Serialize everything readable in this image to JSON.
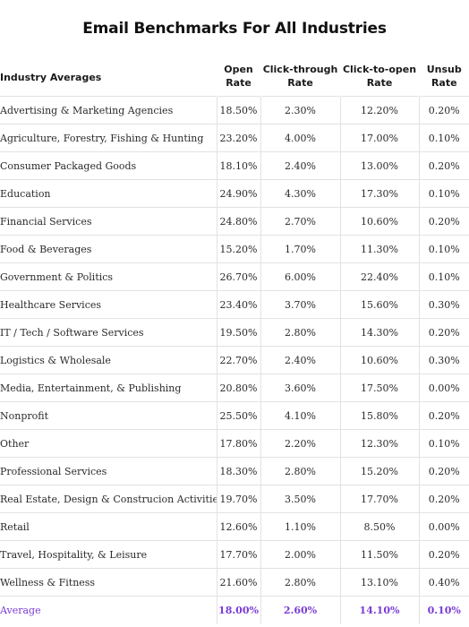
{
  "chart_data": {
    "type": "table",
    "title": "Email Benchmarks For All Industries",
    "columns": [
      "Industry Averages",
      "Open Rate",
      "Click-through Rate",
      "Click-to-open Rate",
      "Unsub Rate"
    ],
    "rows": [
      {
        "industry": "Advertising & Marketing Agencies",
        "open": "18.50%",
        "ctr": "2.30%",
        "ctor": "12.20%",
        "unsub": "0.20%"
      },
      {
        "industry": "Agriculture, Forestry, Fishing & Hunting",
        "open": "23.20%",
        "ctr": "4.00%",
        "ctor": "17.00%",
        "unsub": "0.10%"
      },
      {
        "industry": "Consumer Packaged Goods",
        "open": "18.10%",
        "ctr": "2.40%",
        "ctor": "13.00%",
        "unsub": "0.20%"
      },
      {
        "industry": "Education",
        "open": "24.90%",
        "ctr": "4.30%",
        "ctor": "17.30%",
        "unsub": "0.10%"
      },
      {
        "industry": "Financial Services",
        "open": "24.80%",
        "ctr": "2.70%",
        "ctor": "10.60%",
        "unsub": "0.20%"
      },
      {
        "industry": "Food & Beverages",
        "open": "15.20%",
        "ctr": "1.70%",
        "ctor": "11.30%",
        "unsub": "0.10%"
      },
      {
        "industry": "Government & Politics",
        "open": "26.70%",
        "ctr": "6.00%",
        "ctor": "22.40%",
        "unsub": "0.10%"
      },
      {
        "industry": "Healthcare Services",
        "open": "23.40%",
        "ctr": "3.70%",
        "ctor": "15.60%",
        "unsub": "0.30%"
      },
      {
        "industry": "IT / Tech / Software Services",
        "open": "19.50%",
        "ctr": "2.80%",
        "ctor": "14.30%",
        "unsub": "0.20%"
      },
      {
        "industry": "Logistics & Wholesale",
        "open": "22.70%",
        "ctr": "2.40%",
        "ctor": "10.60%",
        "unsub": "0.30%"
      },
      {
        "industry": "Media, Entertainment, & Publishing",
        "open": "20.80%",
        "ctr": "3.60%",
        "ctor": "17.50%",
        "unsub": "0.00%"
      },
      {
        "industry": "Nonprofit",
        "open": "25.50%",
        "ctr": "4.10%",
        "ctor": "15.80%",
        "unsub": "0.20%"
      },
      {
        "industry": "Other",
        "open": "17.80%",
        "ctr": "2.20%",
        "ctor": "12.30%",
        "unsub": "0.10%"
      },
      {
        "industry": "Professional Services",
        "open": "18.30%",
        "ctr": "2.80%",
        "ctor": "15.20%",
        "unsub": "0.20%"
      },
      {
        "industry": "Real Estate, Design & Construcion Activities",
        "open": "19.70%",
        "ctr": "3.50%",
        "ctor": "17.70%",
        "unsub": "0.20%"
      },
      {
        "industry": "Retail",
        "open": "12.60%",
        "ctr": "1.10%",
        "ctor": "8.50%",
        "unsub": "0.00%"
      },
      {
        "industry": "Travel, Hospitality, & Leisure",
        "open": "17.70%",
        "ctr": "2.00%",
        "ctor": "11.50%",
        "unsub": "0.20%"
      },
      {
        "industry": "Wellness & Fitness",
        "open": "21.60%",
        "ctr": "2.80%",
        "ctor": "13.10%",
        "unsub": "0.40%"
      }
    ],
    "average": {
      "industry": "Average",
      "open": "18.00%",
      "ctr": "2.60%",
      "ctor": "14.10%",
      "unsub": "0.10%"
    }
  },
  "colors": {
    "average_accent": "#7a3cd6",
    "grid_line": "#e2e2e2"
  }
}
